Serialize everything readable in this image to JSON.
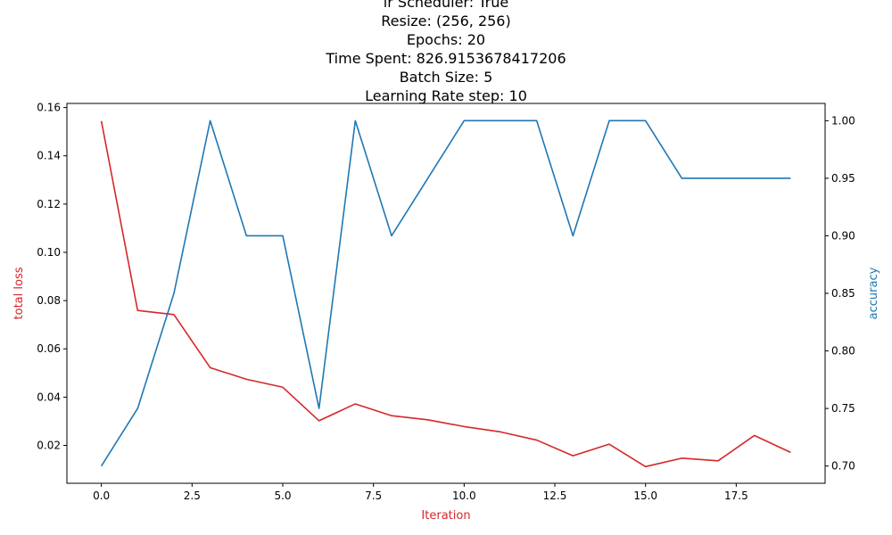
{
  "chart_data": {
    "type": "line",
    "title_lines": [
      "lr Scheduler: True",
      "Resize: (256, 256)",
      "Epochs: 20",
      "Time Spent: 826.9153678417206",
      "Batch Size: 5",
      "Learning Rate step: 10"
    ],
    "xlabel": "Iteration",
    "ylabel_left": "total loss",
    "ylabel_right": "accuracy",
    "x": [
      0,
      1,
      2,
      3,
      4,
      5,
      6,
      7,
      8,
      9,
      10,
      11,
      12,
      13,
      14,
      15,
      16,
      17,
      18,
      19
    ],
    "xlim": [
      -0.95,
      19.95
    ],
    "x_ticks": [
      0.0,
      2.5,
      5.0,
      7.5,
      10.0,
      12.5,
      15.0,
      17.5
    ],
    "x_tick_labels": [
      "0.0",
      "2.5",
      "5.0",
      "7.5",
      "10.0",
      "12.5",
      "15.0",
      "17.5"
    ],
    "ylim_left": [
      0.0043,
      0.1617
    ],
    "y_ticks_left": [
      0.02,
      0.04,
      0.06,
      0.08,
      0.1,
      0.12,
      0.14,
      0.16
    ],
    "y_tick_labels_left": [
      "0.02",
      "0.04",
      "0.06",
      "0.08",
      "0.10",
      "0.12",
      "0.14",
      "0.16"
    ],
    "ylim_right": [
      0.685,
      1.015
    ],
    "y_ticks_right": [
      0.7,
      0.75,
      0.8,
      0.85,
      0.9,
      0.95,
      1.0
    ],
    "y_tick_labels_right": [
      "0.70",
      "0.75",
      "0.80",
      "0.85",
      "0.90",
      "0.95",
      "1.00"
    ],
    "series": [
      {
        "axis": "left",
        "color": "#d62728",
        "values": [
          0.1544,
          0.0759,
          0.0742,
          0.0522,
          0.0474,
          0.0441,
          0.0302,
          0.0372,
          0.0323,
          0.0306,
          0.0278,
          0.0256,
          0.0222,
          0.0157,
          0.0205,
          0.0112,
          0.0147,
          0.0136,
          0.0241,
          0.0171
        ]
      },
      {
        "axis": "right",
        "color": "#1f77b4",
        "values": [
          0.7,
          0.75,
          0.85,
          1.0,
          0.9,
          0.9,
          0.75,
          1.0,
          0.9,
          0.95,
          1.0,
          1.0,
          1.0,
          0.9,
          1.0,
          1.0,
          0.95,
          0.95,
          0.95,
          0.95
        ]
      }
    ],
    "grid": false,
    "legend": "none",
    "left_label_color": "#d62728",
    "right_label_color": "#1f77b4",
    "xlabel_color": "#d62728"
  }
}
